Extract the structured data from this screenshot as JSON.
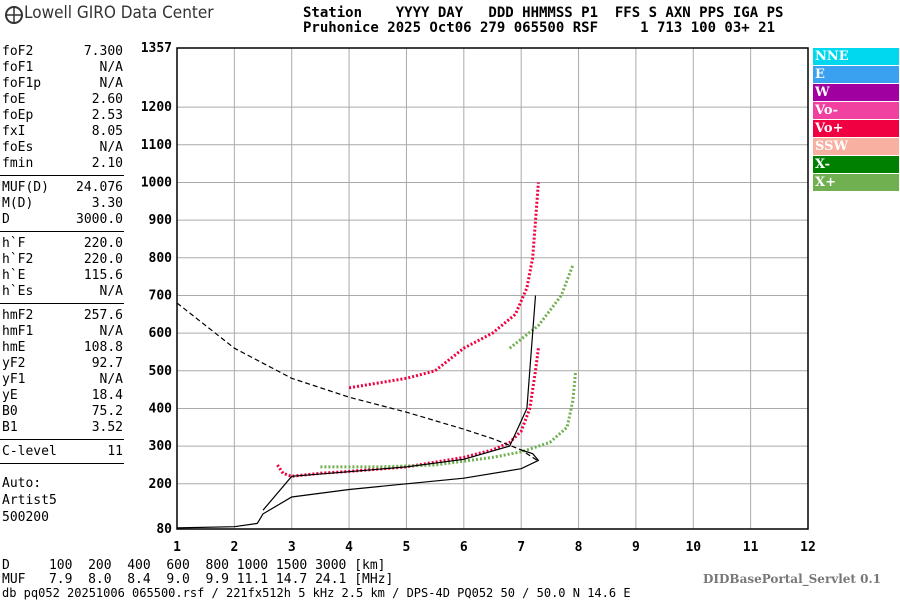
{
  "header": {
    "logo": "Lowell GIRO Data Center",
    "line1": "Station    YYYY DAY   DDD HHMMSS P1  FFS S AXN PPS IGA PS",
    "line2": "Pruhonice 2025 Oct06 279 065500 RSF     1 713 100 03+ 21"
  },
  "params": [
    [
      [
        "foF2",
        "7.300"
      ],
      [
        "foF1",
        "N/A"
      ],
      [
        "foF1p",
        "N/A"
      ],
      [
        "foE",
        "2.60"
      ],
      [
        "foEp",
        "2.53"
      ],
      [
        "fxI",
        "8.05"
      ],
      [
        "foEs",
        "N/A"
      ],
      [
        "fmin",
        "2.10"
      ]
    ],
    [
      [
        "MUF(D)",
        "24.076"
      ],
      [
        "M(D)",
        "3.30"
      ],
      [
        "D",
        "3000.0"
      ]
    ],
    [
      [
        "h`F",
        "220.0"
      ],
      [
        "h`F2",
        "220.0"
      ],
      [
        "h`E",
        "115.6"
      ],
      [
        "h`Es",
        "N/A"
      ]
    ],
    [
      [
        "hmF2",
        "257.6"
      ],
      [
        "hmF1",
        "N/A"
      ],
      [
        "hmE",
        "108.8"
      ],
      [
        "yF2",
        "92.7"
      ],
      [
        "yF1",
        "N/A"
      ],
      [
        "yE",
        "18.4"
      ],
      [
        "B0",
        "75.2"
      ],
      [
        "B1",
        "3.52"
      ]
    ],
    [
      [
        "C-level",
        "11"
      ]
    ]
  ],
  "auto": [
    "Auto:",
    "Artist5",
    "500200"
  ],
  "legend": [
    {
      "name": "NNE",
      "color": "#00d8f0"
    },
    {
      "name": "E",
      "color": "#3aa0f0"
    },
    {
      "name": "W",
      "color": "#a000a0"
    },
    {
      "name": "Vo-",
      "color": "#f040a0"
    },
    {
      "name": "Vo+",
      "color": "#f00040"
    },
    {
      "name": "SSW",
      "color": "#f8b0a0"
    },
    {
      "name": "X-",
      "color": "#008000"
    },
    {
      "name": "X+",
      "color": "#70b050"
    }
  ],
  "chart_data": {
    "type": "line",
    "xlim": [
      1,
      12
    ],
    "xticks": [
      1,
      2,
      3,
      4,
      5,
      6,
      7,
      8,
      9,
      10,
      11,
      12
    ],
    "ylim": [
      80,
      1357
    ],
    "yticks": [
      80,
      200,
      300,
      400,
      500,
      600,
      700,
      800,
      900,
      1000,
      1100,
      1200,
      1357
    ],
    "grid": true,
    "series": [
      {
        "name": "Vo+",
        "color": "#f00040",
        "x": [
          2.75,
          2.85,
          3,
          3.5,
          4,
          5,
          6,
          6.5,
          6.8,
          7,
          7.15,
          7.25,
          7.3,
          3,
          4,
          5,
          5.5,
          6,
          6.5,
          6.9,
          7.1,
          7.2,
          7.3
        ],
        "values": [
          250,
          228,
          220,
          228,
          233,
          245,
          270,
          290,
          310,
          340,
          400,
          500,
          560,
          null,
          455,
          480,
          500,
          560,
          600,
          650,
          720,
          800,
          1000
        ]
      },
      {
        "name": "X+",
        "color": "#70b050",
        "x": [
          3.5,
          4.5,
          5.5,
          6.5,
          7,
          7.5,
          7.8,
          7.9,
          7.95,
          6,
          6.8,
          7.3,
          7.7,
          7.9
        ],
        "values": [
          245,
          245,
          250,
          270,
          285,
          310,
          350,
          420,
          500,
          null,
          560,
          620,
          700,
          780
        ]
      },
      {
        "color": "#000000",
        "x": [
          1,
          2,
          2.4,
          2.5,
          3,
          4,
          5,
          6,
          7,
          7.3,
          7.2,
          7
        ],
        "values": [
          83,
          86,
          95,
          120,
          165,
          185,
          200,
          215,
          240,
          262,
          280,
          290
        ]
      },
      {
        "color": "#000000",
        "x": [
          2.5,
          3,
          4,
          5,
          6,
          6.8,
          7.1,
          7.25
        ],
        "values": [
          130,
          220,
          232,
          245,
          265,
          300,
          400,
          700
        ]
      },
      {
        "color": "#000000",
        "dashed": true,
        "x": [
          1,
          2,
          3,
          4,
          5,
          6,
          6.5,
          7,
          7.3
        ],
        "values": [
          680,
          560,
          480,
          430,
          390,
          345,
          320,
          290,
          260
        ]
      }
    ]
  },
  "footer": {
    "d": "D     100  200  400  600  800 1000 1500 3000 [km]",
    "muf": "MUF   7.9  8.0  8.4  9.0  9.9 11.1 14.7 24.1 [MHz]",
    "db": "db pq052 20251006 065500.rsf / 221fx512h 5 kHz 2.5 km / DPS-4D PQ052 50 / 50.0 N 14.6 E",
    "servlet": "DIDBasePortal_Servlet 0.1"
  }
}
